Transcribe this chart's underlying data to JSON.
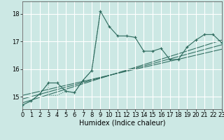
{
  "xlabel": "Humidex (Indice chaleur)",
  "bg_color": "#cce8e4",
  "grid_color": "#ffffff",
  "line_color": "#2e6b5e",
  "xlim": [
    0,
    23
  ],
  "ylim": [
    14.55,
    18.45
  ],
  "xticks": [
    0,
    1,
    2,
    3,
    4,
    5,
    6,
    7,
    8,
    9,
    10,
    11,
    12,
    13,
    14,
    15,
    16,
    17,
    18,
    19,
    20,
    21,
    22,
    23
  ],
  "yticks": [
    15,
    16,
    17,
    18
  ],
  "main_x": [
    0,
    1,
    2,
    3,
    4,
    5,
    6,
    7,
    8,
    9,
    10,
    11,
    12,
    13,
    14,
    15,
    16,
    17,
    18,
    19,
    20,
    21,
    22,
    23
  ],
  "main_y": [
    14.7,
    14.85,
    15.1,
    15.5,
    15.5,
    15.2,
    15.15,
    15.6,
    15.95,
    18.1,
    17.55,
    17.2,
    17.2,
    17.15,
    16.65,
    16.65,
    16.75,
    16.35,
    16.35,
    16.8,
    17.05,
    17.25,
    17.25,
    16.95
  ],
  "dot_x": [
    0,
    1,
    2,
    3,
    3,
    4,
    5,
    6,
    7,
    8,
    9
  ],
  "dot_y": [
    14.7,
    14.85,
    15.1,
    15.5,
    15.05,
    15.05,
    15.2,
    15.15,
    15.6,
    15.95,
    18.1
  ],
  "trend1_x": [
    0,
    23
  ],
  "trend1_y": [
    14.78,
    17.05
  ],
  "trend2_x": [
    0,
    23
  ],
  "trend2_y": [
    14.92,
    16.88
  ],
  "trend3_x": [
    0,
    23
  ],
  "trend3_y": [
    15.05,
    16.72
  ],
  "xlabel_fontsize": 7,
  "tick_fontsize": 6
}
